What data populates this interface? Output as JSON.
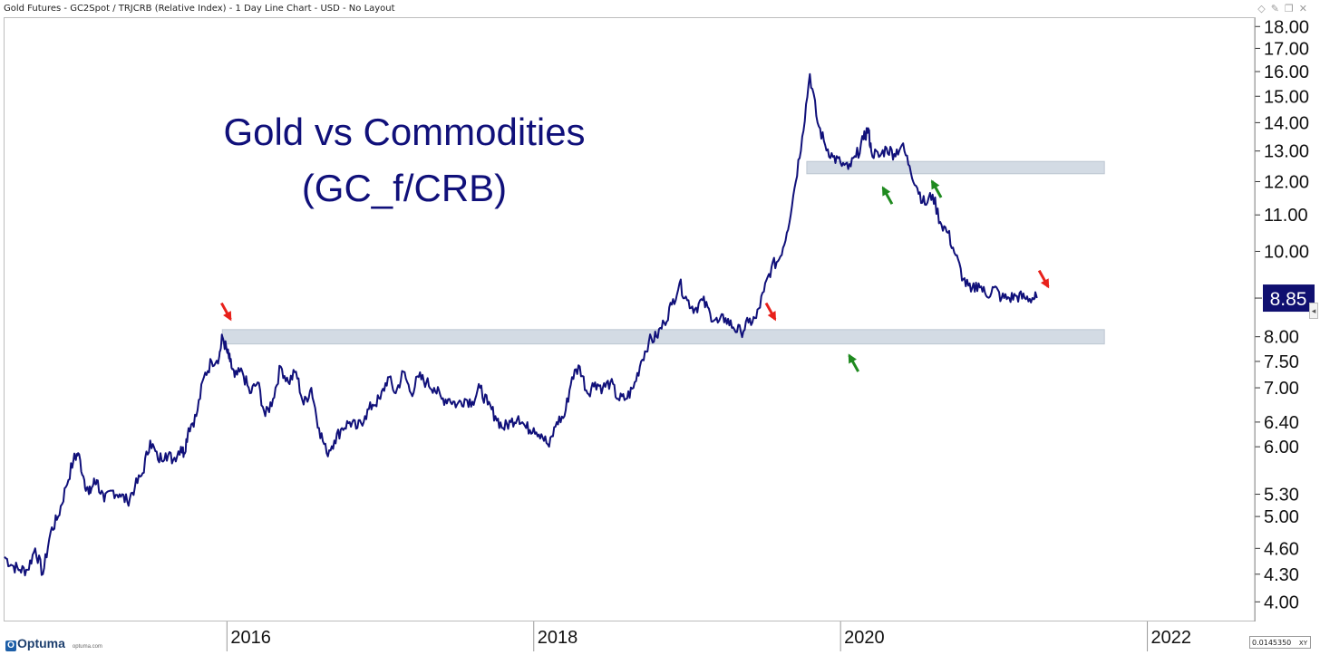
{
  "header": {
    "title": "Gold Futures - GC2Spot / TRJCRB (Relative Index) - 1 Day Line Chart - USD - No Layout"
  },
  "footer": {
    "logo_text": "Optuma",
    "url_text": "optuma.com",
    "readout_value": "0.0145350",
    "readout_mode": "XY"
  },
  "colors": {
    "line": "#10107a",
    "zone": "#d3dbe4",
    "up_arrow": "#1f8a1f",
    "down_arrow": "#e8211b",
    "price_badge": "#101070"
  },
  "chart_data": {
    "type": "line",
    "title": "Gold vs Commodities\n(GC_f/CRB)",
    "title_lines": [
      "Gold vs Commodities",
      "(GC_f/CRB)"
    ],
    "y_scale": "log",
    "ylim": [
      3.8,
      18.4
    ],
    "xlim": [
      2014.55,
      2022.7
    ],
    "x_tick_labels": [
      "2016",
      "2018",
      "2020",
      "2022"
    ],
    "x_tick_values": [
      2016,
      2018,
      2020,
      2022
    ],
    "y_tick_labels": [
      "4.00",
      "4.30",
      "4.60",
      "5.00",
      "5.30",
      "6.00",
      "6.40",
      "7.00",
      "7.50",
      "8.00",
      "10.00",
      "11.00",
      "12.00",
      "13.00",
      "14.00",
      "15.00",
      "16.00",
      "17.00",
      "18.00"
    ],
    "y_tick_values": [
      4.0,
      4.3,
      4.6,
      5.0,
      5.3,
      6.0,
      6.4,
      7.0,
      7.5,
      8.0,
      10.0,
      11.0,
      12.0,
      13.0,
      14.0,
      15.0,
      16.0,
      17.0,
      18.0
    ],
    "last_value": 8.85,
    "last_value_label": "8.85",
    "series": [
      {
        "x": [
          2014.55,
          2014.6,
          2014.65,
          2014.7,
          2014.75,
          2014.8,
          2014.85,
          2014.9,
          2014.95,
          2015.0,
          2015.03,
          2015.07,
          2015.1,
          2015.13,
          2015.15,
          2015.2,
          2015.25,
          2015.3,
          2015.35,
          2015.4,
          2015.45,
          2015.5,
          2015.55,
          2015.6,
          2015.65,
          2015.7,
          2015.72,
          2015.75,
          2015.8,
          2015.85,
          2015.9,
          2015.95,
          2015.97,
          2016.0,
          2016.02,
          2016.05,
          2016.1,
          2016.15,
          2016.2,
          2016.25,
          2016.3,
          2016.35,
          2016.4,
          2016.45,
          2016.5,
          2016.55,
          2016.6,
          2016.65,
          2016.7,
          2016.75,
          2016.8,
          2016.85,
          2016.9,
          2016.95,
          2017.0,
          2017.05,
          2017.1,
          2017.15,
          2017.2,
          2017.25,
          2017.3,
          2017.35,
          2017.4,
          2017.45,
          2017.5,
          2017.55,
          2017.6,
          2017.65,
          2017.7,
          2017.75,
          2017.8,
          2017.85,
          2017.9,
          2017.95,
          2018.0,
          2018.05,
          2018.1,
          2018.15,
          2018.2,
          2018.25,
          2018.3,
          2018.35,
          2018.4,
          2018.45,
          2018.5,
          2018.55,
          2018.6,
          2018.65,
          2018.7,
          2018.75,
          2018.8,
          2018.85,
          2018.9,
          2018.95,
          2019.0,
          2019.05,
          2019.1,
          2019.15,
          2019.2,
          2019.25,
          2019.3,
          2019.35,
          2019.4,
          2019.45,
          2019.5,
          2019.55,
          2019.6,
          2019.65,
          2019.7,
          2019.75,
          2019.8,
          2019.85,
          2019.9,
          2019.95,
          2020.0,
          2020.05,
          2020.1,
          2020.15,
          2020.18,
          2020.2,
          2020.25,
          2020.3,
          2020.35,
          2020.4,
          2020.45,
          2020.5,
          2020.55,
          2020.6,
          2020.65,
          2020.7,
          2020.75,
          2020.8,
          2020.85,
          2020.9,
          2020.95,
          2021.0,
          2021.05,
          2021.1,
          2021.15,
          2021.2,
          2021.25,
          2021.28
        ],
        "values": [
          4.5,
          4.4,
          4.35,
          4.35,
          4.6,
          4.3,
          4.8,
          5.0,
          5.4,
          5.8,
          5.9,
          5.5,
          5.3,
          5.45,
          5.5,
          5.2,
          5.35,
          5.3,
          5.2,
          5.4,
          5.6,
          6.1,
          5.8,
          5.9,
          5.8,
          6.0,
          5.9,
          6.3,
          6.5,
          7.2,
          7.5,
          7.6,
          8.0,
          7.7,
          7.5,
          7.2,
          7.3,
          6.9,
          7.1,
          6.5,
          6.8,
          7.4,
          7.1,
          7.3,
          6.7,
          7.0,
          6.3,
          5.9,
          6.1,
          6.3,
          6.4,
          6.3,
          6.5,
          6.7,
          6.8,
          7.2,
          6.9,
          7.3,
          6.9,
          7.2,
          7.1,
          7.0,
          6.8,
          6.8,
          6.7,
          6.8,
          6.75,
          7.0,
          6.7,
          6.5,
          6.3,
          6.4,
          6.5,
          6.3,
          6.3,
          6.2,
          6.0,
          6.4,
          6.5,
          7.2,
          7.4,
          6.9,
          7.1,
          7.0,
          7.1,
          6.8,
          6.8,
          7.0,
          7.5,
          7.9,
          8.0,
          8.3,
          8.7,
          9.2,
          8.8,
          8.6,
          8.8,
          8.5,
          8.3,
          8.4,
          8.2,
          8.1,
          8.3,
          8.4,
          9.0,
          9.6,
          9.8,
          10.5,
          11.8,
          13.5,
          15.9,
          14.0,
          13.2,
          12.8,
          12.6,
          12.4,
          12.8,
          13.4,
          13.8,
          13.0,
          12.8,
          13.1,
          12.9,
          13.2,
          12.5,
          11.8,
          11.3,
          11.6,
          10.8,
          10.5,
          9.9,
          9.3,
          9.0,
          9.2,
          8.9,
          9.1,
          8.85,
          8.85,
          8.9,
          8.85,
          8.85,
          8.85
        ]
      }
    ],
    "zones": [
      {
        "x": [
          2015.97,
          2021.72
        ],
        "y": [
          7.85,
          8.15
        ]
      },
      {
        "x": [
          2019.78,
          2021.72
        ],
        "y": [
          12.25,
          12.65
        ]
      }
    ],
    "annotations": {
      "red_arrows": [
        {
          "x": 2016.0,
          "y": 8.45,
          "dir": "down"
        },
        {
          "x": 2019.55,
          "y": 8.45,
          "dir": "down"
        },
        {
          "x": 2021.33,
          "y": 9.2,
          "dir": "down"
        }
      ],
      "green_arrows": [
        {
          "x": 2020.08,
          "y": 7.55,
          "dir": "up"
        },
        {
          "x": 2020.3,
          "y": 11.7,
          "dir": "up"
        },
        {
          "x": 2020.62,
          "y": 11.9,
          "dir": "up"
        }
      ]
    }
  }
}
